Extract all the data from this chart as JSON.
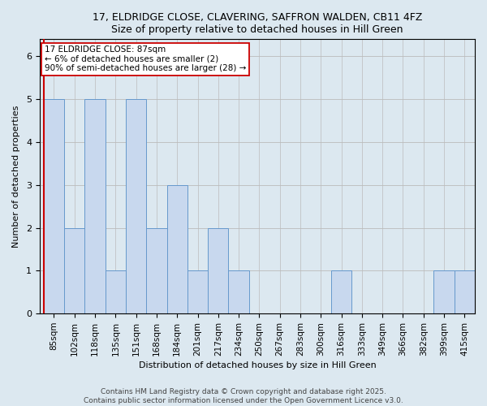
{
  "title": "17, ELDRIDGE CLOSE, CLAVERING, SAFFRON WALDEN, CB11 4FZ",
  "subtitle": "Size of property relative to detached houses in Hill Green",
  "xlabel": "Distribution of detached houses by size in Hill Green",
  "ylabel": "Number of detached properties",
  "categories": [
    "85sqm",
    "102sqm",
    "118sqm",
    "135sqm",
    "151sqm",
    "168sqm",
    "184sqm",
    "201sqm",
    "217sqm",
    "234sqm",
    "250sqm",
    "267sqm",
    "283sqm",
    "300sqm",
    "316sqm",
    "333sqm",
    "349sqm",
    "366sqm",
    "382sqm",
    "399sqm",
    "415sqm"
  ],
  "values": [
    5,
    2,
    5,
    1,
    5,
    2,
    3,
    1,
    2,
    1,
    0,
    0,
    0,
    0,
    1,
    0,
    0,
    0,
    0,
    1,
    1
  ],
  "bar_color": "#c8d8ee",
  "bar_edge_color": "#6699cc",
  "annotation_text": "17 ELDRIDGE CLOSE: 87sqm\n← 6% of detached houses are smaller (2)\n90% of semi-detached houses are larger (28) →",
  "annotation_box_facecolor": "#ffffff",
  "annotation_box_edgecolor": "#cc0000",
  "ylim": [
    0,
    6.4
  ],
  "yticks": [
    0,
    1,
    2,
    3,
    4,
    5,
    6
  ],
  "footnote": "Contains HM Land Registry data © Crown copyright and database right 2025.\nContains public sector information licensed under the Open Government Licence v3.0.",
  "vline_color": "#cc0000",
  "bg_color": "#dce8f0",
  "plot_bg_color": "#dce8f0",
  "title_fontsize": 9,
  "axis_fontsize": 8,
  "tick_fontsize": 7.5,
  "footnote_fontsize": 6.5,
  "annotation_fontsize": 7.5
}
